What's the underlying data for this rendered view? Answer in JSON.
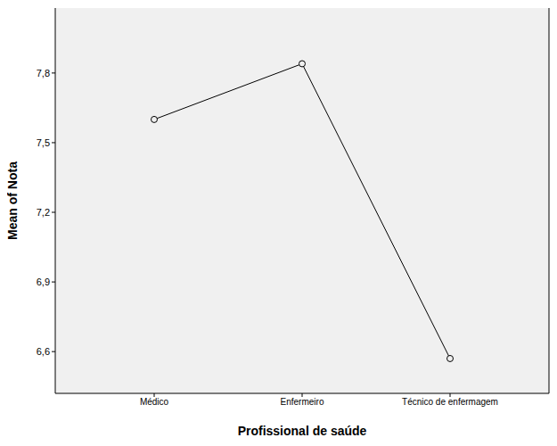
{
  "chart_data": {
    "type": "line",
    "x_label": "Profissional de saúde",
    "y_label": "Mean of Nota",
    "categories": [
      "Médico",
      "Enfermeiro",
      "Técnico de enfermagem"
    ],
    "values": [
      7.6,
      7.84,
      6.57
    ],
    "color": "#000000",
    "marker": "circle",
    "ylim": [
      6.42,
      8.08
    ],
    "yticks": [
      {
        "value": 6.6,
        "label": "6,6"
      },
      {
        "value": 6.9,
        "label": "6,9"
      },
      {
        "value": 7.2,
        "label": "7,2"
      },
      {
        "value": 7.5,
        "label": "7,5"
      },
      {
        "value": 7.8,
        "label": "7,8"
      }
    ],
    "grid": false
  }
}
